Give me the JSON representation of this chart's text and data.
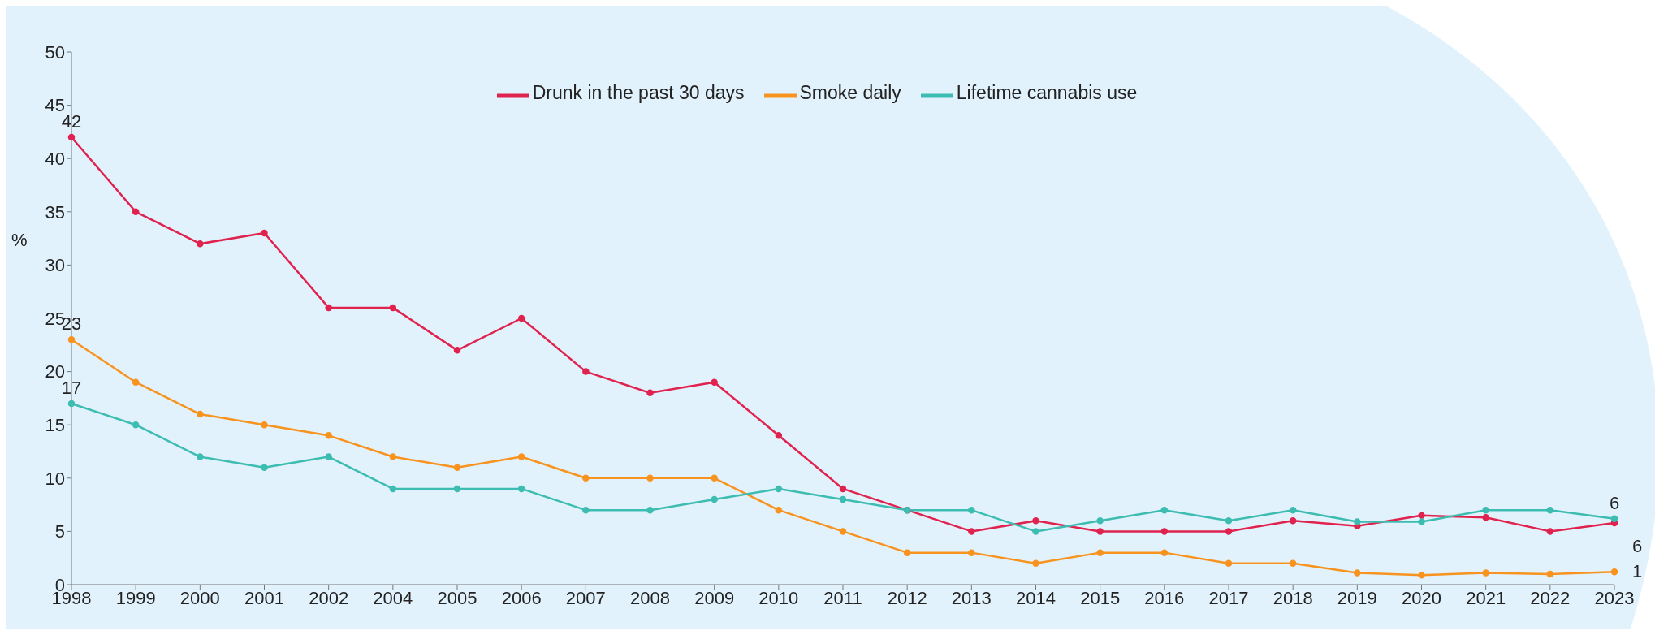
{
  "chart_data": {
    "type": "line",
    "ylabel": "%",
    "categories": [
      "1998",
      "1999",
      "2000",
      "2001",
      "2002",
      "2004",
      "2005",
      "2006",
      "2007",
      "2008",
      "2009",
      "2010",
      "2011",
      "2012",
      "2013",
      "2014",
      "2015",
      "2016",
      "2017",
      "2018",
      "2019",
      "2020",
      "2021",
      "2022",
      "2023"
    ],
    "series": [
      {
        "name": "Drunk in the past 30 days",
        "color": "#e0234e",
        "values": [
          42,
          35,
          32,
          33,
          26,
          26,
          22,
          25,
          20,
          18,
          19,
          14,
          9,
          7,
          5,
          6,
          5,
          5,
          5,
          6,
          5.5,
          6.5,
          6.3,
          5,
          5.8
        ],
        "value_labels": [
          "42",
          null,
          null,
          null,
          null,
          null,
          null,
          null,
          null,
          null,
          null,
          null,
          null,
          null,
          null,
          null,
          null,
          null,
          null,
          null,
          null,
          null,
          null,
          null,
          "6"
        ]
      },
      {
        "name": "Smoke daily",
        "color": "#f7931e",
        "values": [
          23,
          19,
          16,
          15,
          14,
          12,
          11,
          12,
          10,
          10,
          10,
          7,
          5,
          3,
          3,
          2,
          3,
          3,
          2,
          2,
          1.1,
          0.9,
          1.1,
          1,
          1.2
        ],
        "value_labels": [
          "23",
          null,
          null,
          null,
          null,
          null,
          null,
          null,
          null,
          null,
          null,
          null,
          null,
          null,
          null,
          null,
          null,
          null,
          null,
          null,
          null,
          null,
          null,
          null,
          "1"
        ]
      },
      {
        "name": "Lifetime cannabis use",
        "color": "#3dbdb1",
        "values": [
          17,
          15,
          12,
          11,
          12,
          9,
          9,
          9,
          7,
          7,
          8,
          9,
          8,
          7,
          7,
          5,
          6,
          7,
          6,
          7,
          5.9,
          5.9,
          7,
          7,
          6.2
        ],
        "value_labels": [
          "17",
          null,
          null,
          null,
          null,
          null,
          null,
          null,
          null,
          null,
          null,
          null,
          null,
          null,
          null,
          null,
          null,
          null,
          null,
          null,
          null,
          null,
          null,
          null,
          "6"
        ]
      }
    ],
    "ylim": [
      0,
      50
    ],
    "yticks": [
      0,
      5,
      10,
      15,
      20,
      25,
      30,
      35,
      40,
      45,
      50
    ],
    "grid": false,
    "legend": "top",
    "marker": "circle",
    "line_style": "solid"
  }
}
